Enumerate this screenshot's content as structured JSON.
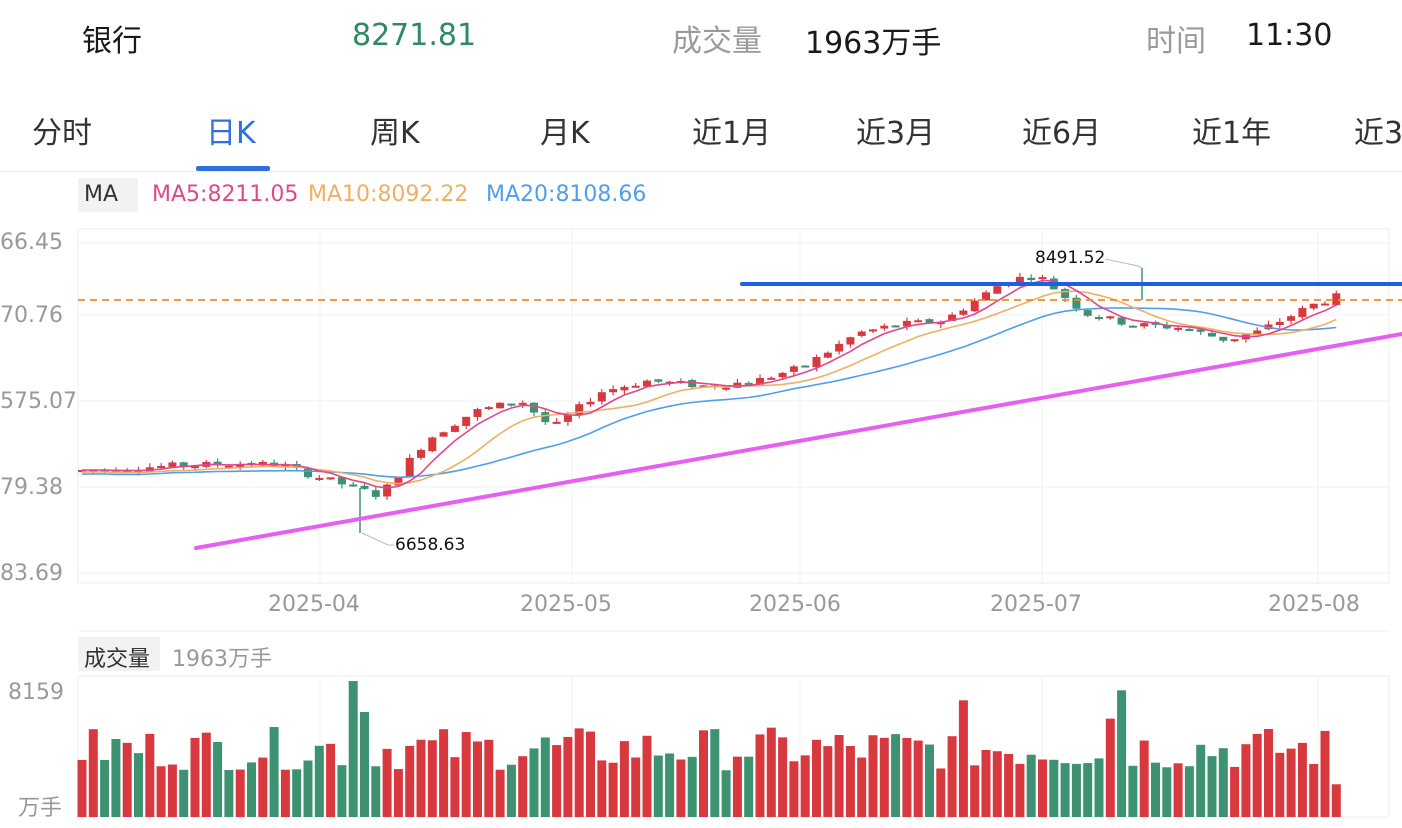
{
  "header": {
    "name": "银行",
    "price": "8271.81",
    "volume_label": "成交量",
    "volume_value": "1963万手",
    "time_label": "时间",
    "time_value": "11:30"
  },
  "tabs": [
    {
      "label": "分时",
      "active": false
    },
    {
      "label": "日K",
      "active": true
    },
    {
      "label": "周K",
      "active": false
    },
    {
      "label": "月K",
      "active": false
    },
    {
      "label": "近1月",
      "active": false
    },
    {
      "label": "近3月",
      "active": false
    },
    {
      "label": "近6月",
      "active": false
    },
    {
      "label": "近1年",
      "active": false
    },
    {
      "label": "近3",
      "active": false
    }
  ],
  "ma_legend": {
    "label": "MA",
    "ma5": "MA5:8211.05",
    "ma10": "MA10:8092.22",
    "ma20": "MA20:8108.66"
  },
  "colors": {
    "up": "#d8393f",
    "down": "#3d9271",
    "ma5": "#e0488e",
    "ma10": "#eeb064",
    "ma20": "#4f9fe9",
    "support_line": "#e65ff0",
    "resistance_line": "#1f5fe6",
    "dashed_line": "#f08a2a",
    "accent": "#2f6fe0"
  },
  "y_axis_labels": [
    "66.45",
    "70.76",
    "575.07",
    "79.38",
    "83.69"
  ],
  "x_axis_labels": [
    "2025-04",
    "2025-05",
    "2025-06",
    "2025-07",
    "2025-08"
  ],
  "annotations": {
    "high": "8491.52",
    "low": "6658.63"
  },
  "volume_panel": {
    "title": "成交量",
    "value": "1963万手",
    "y_top": "8159",
    "y_unit": "万手"
  },
  "chart_data": {
    "type": "candlestick",
    "x_range": [
      "2025-03",
      "2025-08"
    ],
    "price_high_marked": 8491.52,
    "price_low_marked": 6658.63,
    "last_close": 8271.81,
    "ma": {
      "MA5": 8211.05,
      "MA10": 8092.22,
      "MA20": 8108.66
    },
    "volume_unit": "万手",
    "volume_max_label": 8159,
    "last_volume": 1963
  }
}
